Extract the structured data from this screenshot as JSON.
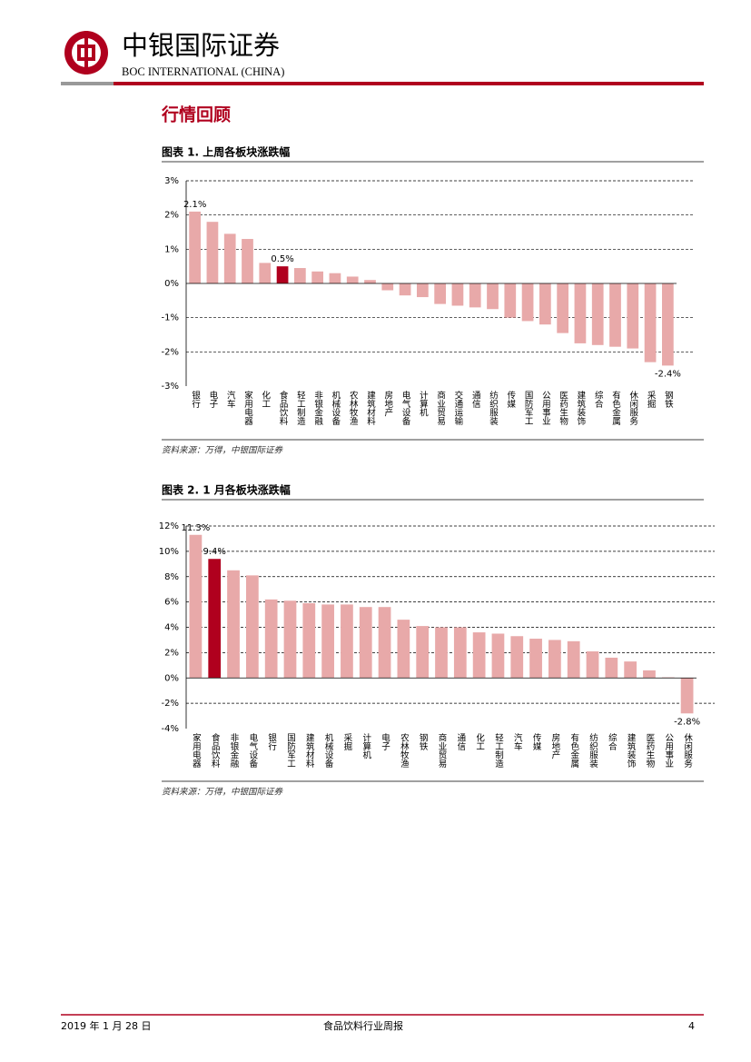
{
  "header": {
    "company": "中银国际证券",
    "company_en": "BOC INTERNATIONAL (CHINA)"
  },
  "section_title": "行情回顾",
  "chart_data": [
    {
      "type": "bar",
      "title": "图表 1. 上周各板块涨跌幅",
      "source": "资料来源：万得，中银国际证券",
      "categories": [
        "银行",
        "电子",
        "汽车",
        "家用电器",
        "化工",
        "食品饮料",
        "轻工制造",
        "非银金融",
        "机械设备",
        "农林牧渔",
        "建筑材料",
        "房地产",
        "电气设备",
        "计算机",
        "商业贸易",
        "交通运输",
        "通信",
        "纺织服装",
        "传媒",
        "国防军工",
        "公用事业",
        "医药生物",
        "建筑装饰",
        "综合",
        "有色金属",
        "休闲服务",
        "采掘",
        "钢铁"
      ],
      "values": [
        2.1,
        1.8,
        1.45,
        1.3,
        0.6,
        0.5,
        0.45,
        0.35,
        0.3,
        0.2,
        0.1,
        -0.2,
        -0.35,
        -0.4,
        -0.6,
        -0.65,
        -0.7,
        -0.75,
        -1.0,
        -1.1,
        -1.2,
        -1.45,
        -1.75,
        -1.8,
        -1.85,
        -1.9,
        -2.3,
        -2.4
      ],
      "value_labels": [
        "2.1%",
        null,
        null,
        null,
        null,
        "0.5%",
        null,
        null,
        null,
        null,
        null,
        null,
        null,
        null,
        null,
        null,
        null,
        null,
        null,
        null,
        null,
        null,
        null,
        null,
        null,
        null,
        null,
        "-2.4%"
      ],
      "color": "#e8a9a9",
      "highlight": "食品饮料",
      "highlight_color": "#b0001e",
      "ylim": [
        -3,
        3
      ],
      "yticks": [
        {
          "value": -3,
          "label": "-3%"
        },
        {
          "value": -2,
          "label": "-2%"
        },
        {
          "value": -1,
          "label": "-1%"
        },
        {
          "value": 0,
          "label": "0%"
        },
        {
          "value": 1,
          "label": "1%"
        },
        {
          "value": 2,
          "label": "2%"
        },
        {
          "value": 3,
          "label": "3%"
        }
      ],
      "grid": true
    },
    {
      "type": "bar",
      "title": "图表 2. 1 月各板块涨跌幅",
      "source": "资料来源：万得，中银国际证券",
      "categories": [
        "家用电器",
        "食品饮料",
        "非银金融",
        "电气设备",
        "银行",
        "国防军工",
        "建筑材料",
        "机械设备",
        "采掘",
        "计算机",
        "电子",
        "农林牧渔",
        "钢铁",
        "商业贸易",
        "通信",
        "化工",
        "轻工制造",
        "汽车",
        "传媒",
        "房地产",
        "有色金属",
        "纺织服装",
        "综合",
        "建筑装饰",
        "医药生物",
        "公用事业",
        "休闲服务"
      ],
      "values": [
        11.3,
        9.4,
        8.5,
        8.1,
        6.2,
        6.1,
        5.9,
        5.8,
        5.8,
        5.6,
        5.6,
        4.6,
        4.1,
        4.0,
        4.0,
        3.6,
        3.5,
        3.3,
        3.1,
        3.0,
        2.9,
        2.1,
        1.6,
        1.3,
        0.6,
        0.05,
        -2.8
      ],
      "value_labels": [
        "11.3%",
        "9.4%",
        null,
        null,
        null,
        null,
        null,
        null,
        null,
        null,
        null,
        null,
        null,
        null,
        null,
        null,
        null,
        null,
        null,
        null,
        null,
        null,
        null,
        null,
        null,
        null,
        "-2.8%"
      ],
      "color": "#e8a9a9",
      "highlight": "食品饮料",
      "highlight_color": "#b0001e",
      "ylim": [
        -4,
        12
      ],
      "yticks": [
        {
          "value": -4,
          "label": "-4%"
        },
        {
          "value": -2,
          "label": "-2%"
        },
        {
          "value": 0,
          "label": "0%"
        },
        {
          "value": 2,
          "label": "2%"
        },
        {
          "value": 4,
          "label": "4%"
        },
        {
          "value": 6,
          "label": "6%"
        },
        {
          "value": 8,
          "label": "8%"
        },
        {
          "value": 10,
          "label": "10%"
        },
        {
          "value": 12,
          "label": "12%"
        }
      ],
      "grid": true
    }
  ],
  "footer": {
    "date": "2019 年 1 月 28 日",
    "report": "食品饮料行业周报",
    "page": "4"
  }
}
